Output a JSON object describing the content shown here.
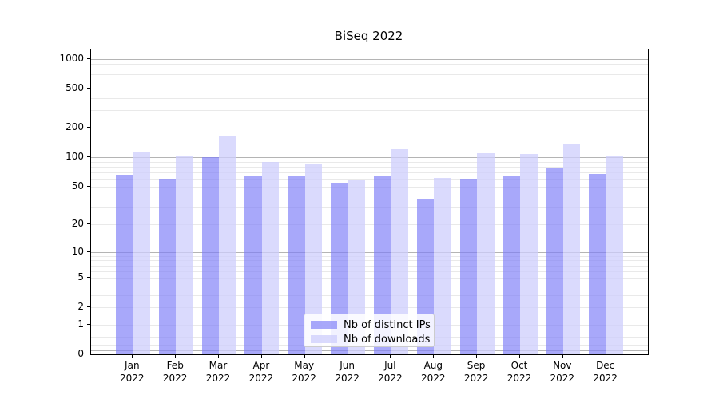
{
  "title": "BiSeq 2022",
  "colors": {
    "bar_distinct_ips": "rgba(125,125,248,0.67)",
    "bar_downloads": "rgba(205,205,252,0.75)",
    "grid_minor": "#e9e9e9",
    "grid_major": "#b4b4b4",
    "axis": "#000000",
    "legend_border": "#cccccc"
  },
  "legend": {
    "items": [
      {
        "label": "Nb of distinct IPs",
        "series": "distinct_ips"
      },
      {
        "label": "Nb of downloads",
        "series": "downloads"
      }
    ]
  },
  "chart_data": {
    "type": "bar",
    "title": "BiSeq 2022",
    "categories": [
      "Jan 2022",
      "Feb 2022",
      "Mar 2022",
      "Apr 2022",
      "May 2022",
      "Jun 2022",
      "Jul 2022",
      "Aug 2022",
      "Sep 2022",
      "Oct 2022",
      "Nov 2022",
      "Dec 2022"
    ],
    "series": [
      {
        "name": "Nb of distinct IPs",
        "values": [
          66,
          60,
          100,
          64,
          64,
          54,
          65,
          37,
          60,
          64,
          78,
          67
        ]
      },
      {
        "name": "Nb of downloads",
        "values": [
          113,
          101,
          163,
          90,
          84,
          59,
          120,
          61,
          110,
          107,
          137,
          101
        ]
      }
    ],
    "xlabel": "",
    "ylabel": "",
    "y_scale": "log10(1+value)",
    "y_tick_values": [
      0,
      1,
      2,
      5,
      10,
      20,
      50,
      100,
      200,
      500,
      1000
    ],
    "y_axis_top_value": 1250,
    "grid": "horizontal, minor light + major dark",
    "legend_position": "inside bottom-center",
    "gridline_values": {
      "major": [
        0.1,
        10,
        100,
        1000
      ],
      "minor": [
        0.25,
        0.5,
        1,
        2,
        3,
        4,
        5,
        6,
        7,
        8,
        9,
        20,
        30,
        40,
        50,
        60,
        70,
        80,
        90,
        200,
        300,
        400,
        500,
        600,
        700,
        800,
        900
      ]
    }
  }
}
